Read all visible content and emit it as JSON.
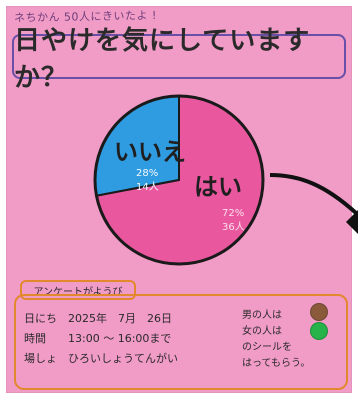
{
  "poster": {
    "top_note": "ネちかん 50人にきいたよ !",
    "title": "日やけを気にしていますか？"
  },
  "chart_data": {
    "type": "pie",
    "title": "日やけを気にしていますか？",
    "categories": [
      "はい",
      "いいえ"
    ],
    "values": [
      72,
      28
    ],
    "labels": {
      "yes": "はい",
      "no": "いいえ",
      "yes_small_1": "72%",
      "yes_small_2": "36人",
      "no_small_1": "28%",
      "no_small_2": "14人"
    },
    "colors": {
      "yes": "#e9589f",
      "no": "#2f9be0",
      "outline": "#1a1a1a"
    }
  },
  "survey": {
    "heading": "アンケートがようび",
    "lines": [
      "日にち　2025年　7月　26日",
      "時間　　13:00 〜 16:00まで",
      "場しょ　ひろいしょうてんがい"
    ],
    "legend": [
      "男の人は",
      "女の人は",
      "のシールを",
      "はってもらう。"
    ],
    "legend_colors": {
      "male": "#8a5a3b",
      "female": "#27b24a"
    }
  }
}
